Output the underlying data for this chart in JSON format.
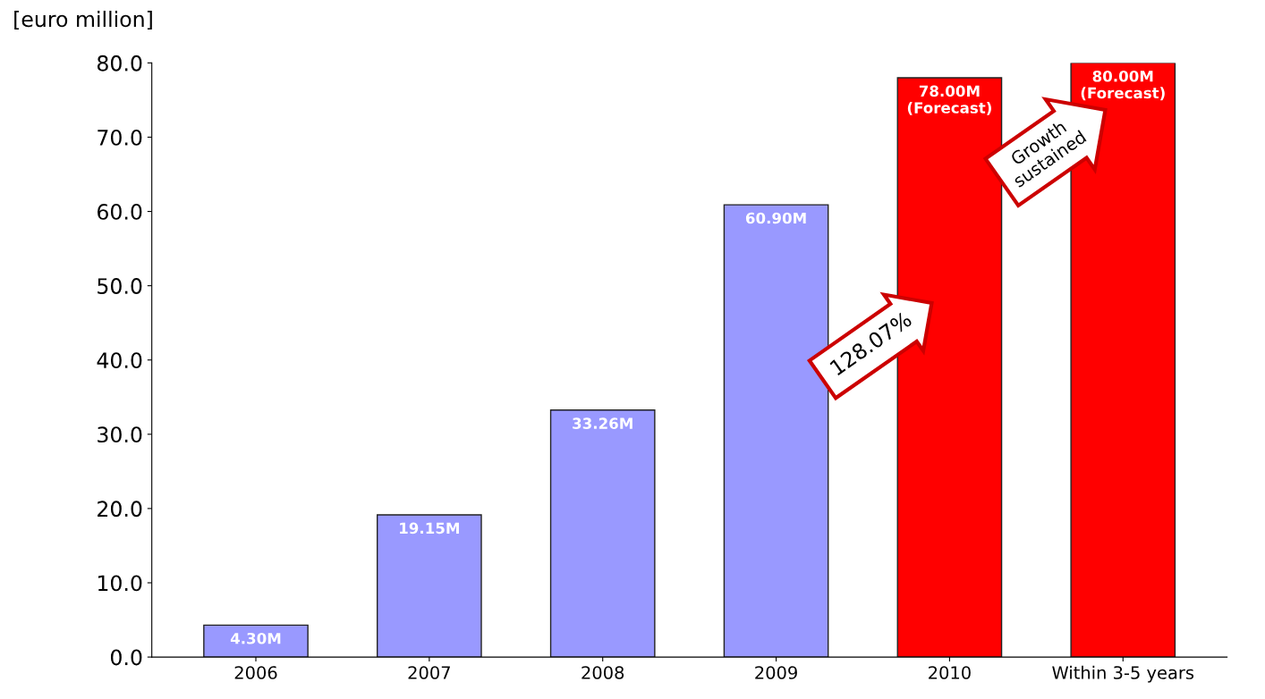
{
  "chart_data": {
    "type": "bar",
    "ylabel": "[euro million]",
    "categories": [
      "2006",
      "2007",
      "2008",
      "2009",
      "2010",
      "Within 3-5 years"
    ],
    "values": [
      4.3,
      19.15,
      33.26,
      60.9,
      78.0,
      80.0
    ],
    "colors": [
      "#9999ff",
      "#9999ff",
      "#9999ff",
      "#9999ff",
      "#ff0000",
      "#ff0000"
    ],
    "value_labels": [
      "4.30M",
      "19.15M",
      "33.26M",
      "60.90M",
      "78.00M\n(Forecast)",
      "80.00M\n(Forecast)"
    ],
    "ylim": [
      0,
      80
    ],
    "yticks": [
      {
        "value": 0,
        "label": "0.0"
      },
      {
        "value": 10,
        "label": "10.0"
      },
      {
        "value": 20,
        "label": "20.0"
      },
      {
        "value": 30,
        "label": "30.0"
      },
      {
        "value": 40,
        "label": "40.0"
      },
      {
        "value": 50,
        "label": "50.0"
      },
      {
        "value": 60,
        "label": "60.0"
      },
      {
        "value": 70,
        "label": "70.0"
      },
      {
        "value": 80,
        "label": "80.0"
      }
    ],
    "annotations": [
      "128.07%",
      "Growth\nsustained"
    ],
    "grid": false,
    "legend": false
  }
}
